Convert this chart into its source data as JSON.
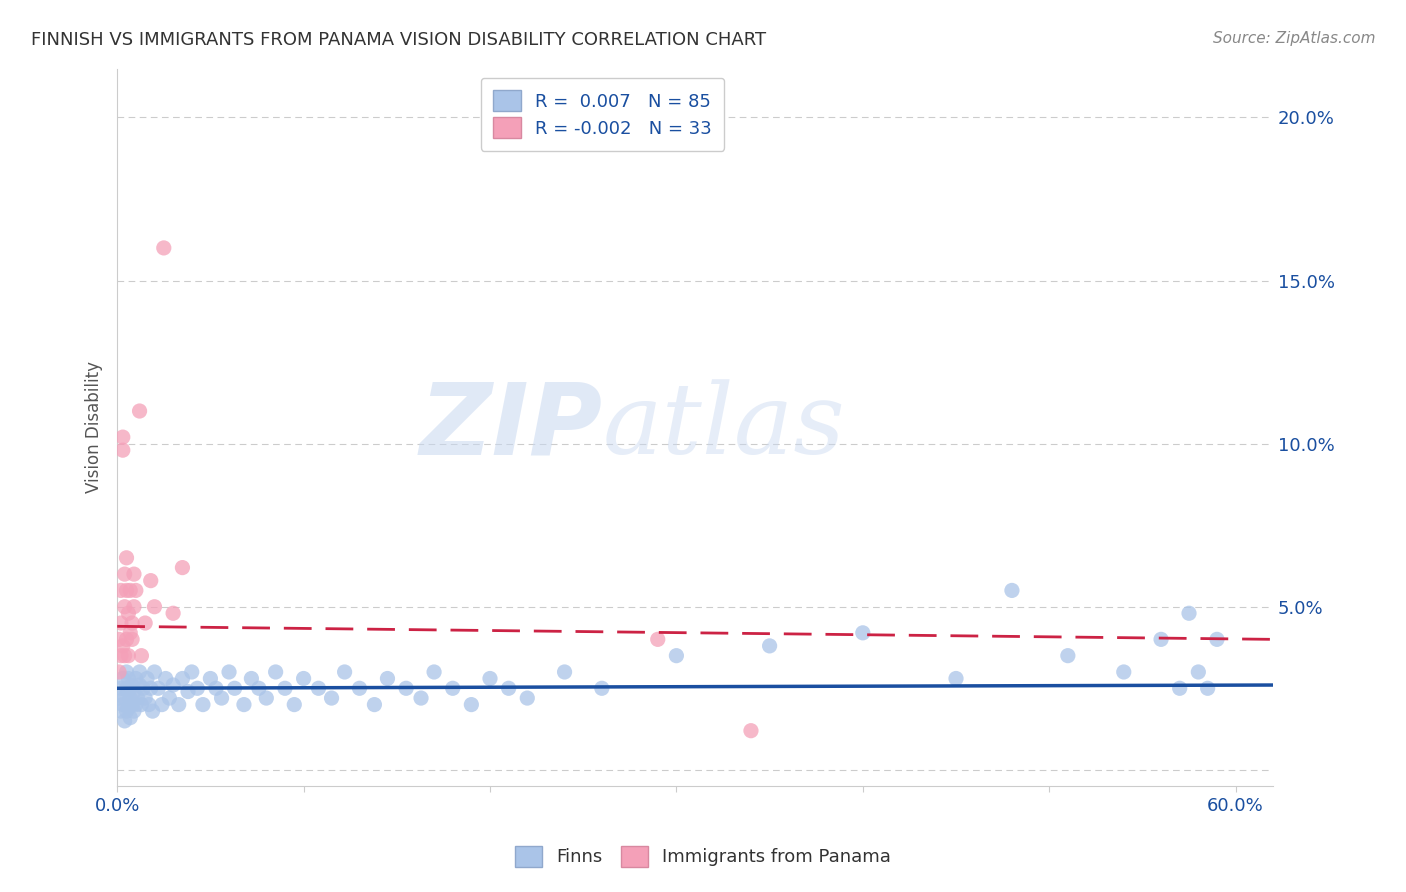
{
  "title": "FINNISH VS IMMIGRANTS FROM PANAMA VISION DISABILITY CORRELATION CHART",
  "source": "Source: ZipAtlas.com",
  "ylabel": "Vision Disability",
  "xlim": [
    0.0,
    0.62
  ],
  "ylim": [
    -0.005,
    0.215
  ],
  "yticks": [
    0.0,
    0.05,
    0.1,
    0.15,
    0.2
  ],
  "ytick_labels": [
    "",
    "5.0%",
    "10.0%",
    "15.0%",
    "20.0%"
  ],
  "xticks": [
    0.0,
    0.1,
    0.2,
    0.3,
    0.4,
    0.5,
    0.6
  ],
  "xtick_labels": [
    "0.0%",
    "",
    "",
    "",
    "",
    "",
    "60.0%"
  ],
  "legend_r_finns": " 0.007",
  "legend_n_finns": "85",
  "legend_r_panama": "-0.002",
  "legend_n_panama": "33",
  "finns_color": "#aac4e8",
  "panama_color": "#f4a0b8",
  "trend_finns_color": "#1a4fa0",
  "trend_panama_color": "#cc2244",
  "watermark_zip": "ZIP",
  "watermark_atlas": "atlas",
  "finns_x": [
    0.001,
    0.002,
    0.002,
    0.003,
    0.003,
    0.004,
    0.004,
    0.005,
    0.005,
    0.005,
    0.006,
    0.006,
    0.006,
    0.007,
    0.007,
    0.008,
    0.008,
    0.009,
    0.009,
    0.01,
    0.01,
    0.011,
    0.012,
    0.012,
    0.013,
    0.014,
    0.015,
    0.016,
    0.017,
    0.018,
    0.019,
    0.02,
    0.022,
    0.024,
    0.026,
    0.028,
    0.03,
    0.033,
    0.035,
    0.038,
    0.04,
    0.043,
    0.046,
    0.05,
    0.053,
    0.056,
    0.06,
    0.063,
    0.068,
    0.072,
    0.076,
    0.08,
    0.085,
    0.09,
    0.095,
    0.1,
    0.108,
    0.115,
    0.122,
    0.13,
    0.138,
    0.145,
    0.155,
    0.163,
    0.17,
    0.18,
    0.19,
    0.2,
    0.21,
    0.22,
    0.24,
    0.26,
    0.3,
    0.35,
    0.4,
    0.45,
    0.48,
    0.51,
    0.54,
    0.56,
    0.57,
    0.575,
    0.58,
    0.585,
    0.59
  ],
  "finns_y": [
    0.022,
    0.018,
    0.025,
    0.02,
    0.028,
    0.015,
    0.022,
    0.018,
    0.025,
    0.03,
    0.019,
    0.024,
    0.028,
    0.016,
    0.022,
    0.02,
    0.026,
    0.018,
    0.024,
    0.02,
    0.028,
    0.022,
    0.026,
    0.03,
    0.02,
    0.025,
    0.022,
    0.028,
    0.02,
    0.025,
    0.018,
    0.03,
    0.025,
    0.02,
    0.028,
    0.022,
    0.026,
    0.02,
    0.028,
    0.024,
    0.03,
    0.025,
    0.02,
    0.028,
    0.025,
    0.022,
    0.03,
    0.025,
    0.02,
    0.028,
    0.025,
    0.022,
    0.03,
    0.025,
    0.02,
    0.028,
    0.025,
    0.022,
    0.03,
    0.025,
    0.02,
    0.028,
    0.025,
    0.022,
    0.03,
    0.025,
    0.02,
    0.028,
    0.025,
    0.022,
    0.03,
    0.025,
    0.035,
    0.038,
    0.042,
    0.028,
    0.055,
    0.035,
    0.03,
    0.04,
    0.025,
    0.048,
    0.03,
    0.025,
    0.04
  ],
  "panama_x": [
    0.001,
    0.001,
    0.002,
    0.002,
    0.002,
    0.003,
    0.003,
    0.003,
    0.004,
    0.004,
    0.004,
    0.005,
    0.005,
    0.005,
    0.006,
    0.006,
    0.007,
    0.007,
    0.008,
    0.008,
    0.009,
    0.009,
    0.01,
    0.012,
    0.013,
    0.015,
    0.018,
    0.02,
    0.025,
    0.03,
    0.035,
    0.29,
    0.34
  ],
  "panama_y": [
    0.03,
    0.04,
    0.035,
    0.045,
    0.055,
    0.038,
    0.098,
    0.102,
    0.035,
    0.05,
    0.06,
    0.04,
    0.055,
    0.065,
    0.035,
    0.048,
    0.042,
    0.055,
    0.04,
    0.045,
    0.05,
    0.06,
    0.055,
    0.11,
    0.035,
    0.045,
    0.058,
    0.05,
    0.16,
    0.048,
    0.062,
    0.04,
    0.012
  ],
  "finns_trend_y0": 0.025,
  "finns_trend_y1": 0.026,
  "panama_trend_y0": 0.044,
  "panama_trend_y1": 0.04
}
